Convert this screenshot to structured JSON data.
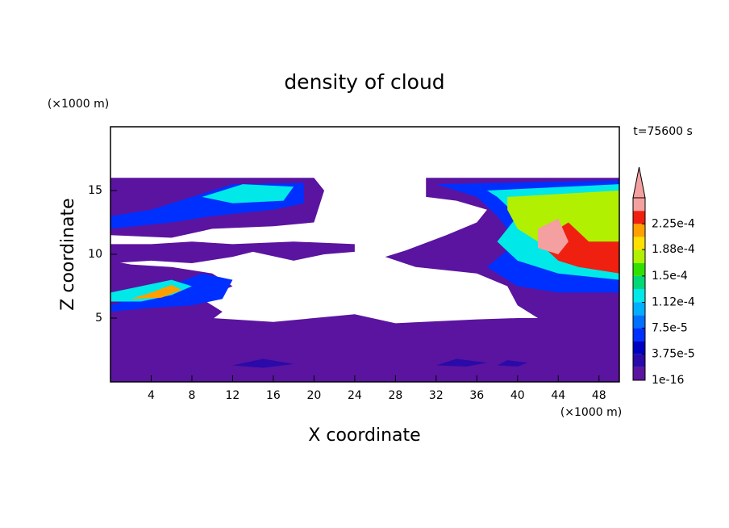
{
  "chart_data": {
    "type": "contour",
    "title": "density of cloud",
    "x_label": "X coordinate",
    "y_label": "Z coordinate",
    "x_unit": "(×1000 m)",
    "y_unit": "(×1000 m)",
    "annotation": "t=75600 s",
    "xlim": [
      0,
      50
    ],
    "xticks": [
      4,
      8,
      12,
      16,
      20,
      24,
      28,
      32,
      36,
      40,
      44,
      48
    ],
    "ylim": [
      0,
      20
    ],
    "yticks": [
      5,
      10,
      15
    ],
    "colorbar": {
      "clim": [
        1e-16,
        0.0002625
      ],
      "levels": [
        1e-16,
        1.875e-05,
        3.75e-05,
        5.625e-05,
        7.5e-05,
        9.375e-05,
        0.0001125,
        0.00013125,
        0.00015,
        0.00016875,
        0.0001875,
        0.00020625,
        0.000225,
        0.00024375
      ],
      "colors": [
        "#5a14a0",
        "#2a0aa8",
        "#0000c0",
        "#0030ff",
        "#0070ff",
        "#00b0ff",
        "#00e8e8",
        "#00d878",
        "#30e000",
        "#b0f000",
        "#ffe000",
        "#ffa000",
        "#f02010",
        "#f4a0a0"
      ],
      "ticks": [
        {
          "value": 1e-16,
          "label": "1e-16"
        },
        {
          "value": 3.75e-05,
          "label": "3.75e-5"
        },
        {
          "value": 7.5e-05,
          "label": "7.5e-5"
        },
        {
          "value": 0.000112,
          "label": "1.12e-4"
        },
        {
          "value": 0.00015,
          "label": "1.5e-4"
        },
        {
          "value": 0.000188,
          "label": "1.88e-4"
        },
        {
          "value": 0.000225,
          "label": "2.25e-4"
        }
      ]
    },
    "regions": [
      {
        "value": 1e-16,
        "points": [
          [
            0,
            0
          ],
          [
            50,
            0
          ],
          [
            50,
            5
          ],
          [
            40,
            5
          ],
          [
            36,
            4.9
          ],
          [
            28,
            4.6
          ],
          [
            24,
            5.3
          ],
          [
            16,
            4.7
          ],
          [
            10,
            5
          ],
          [
            0,
            5
          ]
        ]
      },
      {
        "value": 1e-16,
        "points": [
          [
            0,
            4.9
          ],
          [
            10,
            4.9
          ],
          [
            11,
            5.5
          ],
          [
            9,
            6.5
          ],
          [
            12,
            7.5
          ],
          [
            10,
            8.5
          ],
          [
            6,
            9
          ],
          [
            2,
            9.2
          ],
          [
            0,
            9.5
          ]
        ]
      },
      {
        "value": 1e-16,
        "points": [
          [
            0,
            9.3
          ],
          [
            4,
            9.5
          ],
          [
            8,
            9.3
          ],
          [
            12,
            9.8
          ],
          [
            14,
            10.2
          ],
          [
            18,
            9.5
          ],
          [
            21,
            10
          ],
          [
            24,
            10.2
          ],
          [
            24,
            10.8
          ],
          [
            18,
            11
          ],
          [
            12,
            10.8
          ],
          [
            8,
            11
          ],
          [
            4,
            10.8
          ],
          [
            0,
            10.8
          ]
        ]
      },
      {
        "value": 1e-16,
        "points": [
          [
            0,
            11.5
          ],
          [
            6,
            11.3
          ],
          [
            10,
            12
          ],
          [
            16,
            12.2
          ],
          [
            20,
            12.5
          ],
          [
            21,
            15
          ],
          [
            20,
            16
          ],
          [
            0,
            16
          ]
        ]
      },
      {
        "value": 1e-16,
        "points": [
          [
            31,
            16
          ],
          [
            50,
            16
          ],
          [
            50,
            5
          ],
          [
            42,
            5
          ],
          [
            40,
            6
          ],
          [
            39,
            7.5
          ],
          [
            36,
            8.5
          ],
          [
            30,
            9
          ],
          [
            27,
            9.8
          ],
          [
            29,
            10.3
          ],
          [
            33,
            11.5
          ],
          [
            36,
            12.5
          ],
          [
            37,
            13.5
          ],
          [
            34,
            14.2
          ],
          [
            31,
            14.5
          ]
        ]
      },
      {
        "value": 1.875e-05,
        "points": [
          [
            12,
            1.3
          ],
          [
            15,
            1.1
          ],
          [
            18,
            1.4
          ],
          [
            15,
            1.8
          ]
        ]
      },
      {
        "value": 1.875e-05,
        "points": [
          [
            32,
            1.3
          ],
          [
            35,
            1.2
          ],
          [
            37,
            1.5
          ],
          [
            34,
            1.8
          ]
        ]
      },
      {
        "value": 1.875e-05,
        "points": [
          [
            38,
            1.3
          ],
          [
            40,
            1.2
          ],
          [
            41,
            1.5
          ],
          [
            39,
            1.7
          ]
        ]
      },
      {
        "value": 5.625e-05,
        "points": [
          [
            0,
            5.5
          ],
          [
            4,
            5.8
          ],
          [
            8,
            6
          ],
          [
            11,
            6.5
          ],
          [
            12,
            8
          ],
          [
            9,
            8.5
          ],
          [
            4,
            7
          ],
          [
            0,
            6
          ]
        ]
      },
      {
        "value": 0.0001125,
        "points": [
          [
            0,
            6.3
          ],
          [
            3,
            6.3
          ],
          [
            6,
            6.8
          ],
          [
            8,
            7.5
          ],
          [
            6,
            8
          ],
          [
            3,
            7.5
          ],
          [
            0,
            7
          ]
        ]
      },
      {
        "value": 0.00020625,
        "points": [
          [
            2,
            6.5
          ],
          [
            5,
            6.6
          ],
          [
            7,
            7.2
          ],
          [
            6,
            7.6
          ],
          [
            4,
            7
          ]
        ]
      },
      {
        "value": 5.625e-05,
        "points": [
          [
            0,
            12
          ],
          [
            6,
            12.5
          ],
          [
            10,
            13
          ],
          [
            16,
            13.5
          ],
          [
            19,
            14
          ],
          [
            19,
            15.6
          ],
          [
            12,
            15.5
          ],
          [
            8,
            14.5
          ],
          [
            4,
            13.5
          ],
          [
            0,
            13
          ]
        ]
      },
      {
        "value": 0.0001125,
        "points": [
          [
            9,
            14.5
          ],
          [
            12,
            14
          ],
          [
            17,
            14.2
          ],
          [
            18,
            15.3
          ],
          [
            13,
            15.5
          ]
        ]
      },
      {
        "value": 5.625e-05,
        "points": [
          [
            32,
            15.5
          ],
          [
            50,
            15.8
          ],
          [
            50,
            7
          ],
          [
            44,
            7
          ],
          [
            40,
            7.5
          ],
          [
            37,
            9
          ],
          [
            40,
            11
          ],
          [
            38,
            13
          ],
          [
            36,
            14.5
          ]
        ]
      },
      {
        "value": 0.0001125,
        "points": [
          [
            37,
            15
          ],
          [
            50,
            15.5
          ],
          [
            50,
            8
          ],
          [
            44,
            8.5
          ],
          [
            40,
            9.5
          ],
          [
            38,
            11
          ],
          [
            40,
            13
          ],
          [
            38,
            14.5
          ]
        ]
      },
      {
        "value": 0.00016875,
        "points": [
          [
            39,
            14.5
          ],
          [
            50,
            15
          ],
          [
            50,
            9
          ],
          [
            45,
            10
          ],
          [
            42,
            11
          ],
          [
            40,
            12
          ],
          [
            39,
            13.5
          ]
        ]
      },
      {
        "value": 0.000225,
        "points": [
          [
            42,
            11
          ],
          [
            44,
            9.5
          ],
          [
            46,
            9
          ],
          [
            50,
            8.5
          ],
          [
            50,
            11
          ],
          [
            47,
            11
          ],
          [
            45,
            12.5
          ]
        ]
      },
      {
        "value": 0.00024375,
        "points": [
          [
            42,
            10.5
          ],
          [
            44,
            10
          ],
          [
            45,
            11
          ],
          [
            44,
            12.8
          ],
          [
            42,
            12
          ]
        ]
      }
    ]
  }
}
